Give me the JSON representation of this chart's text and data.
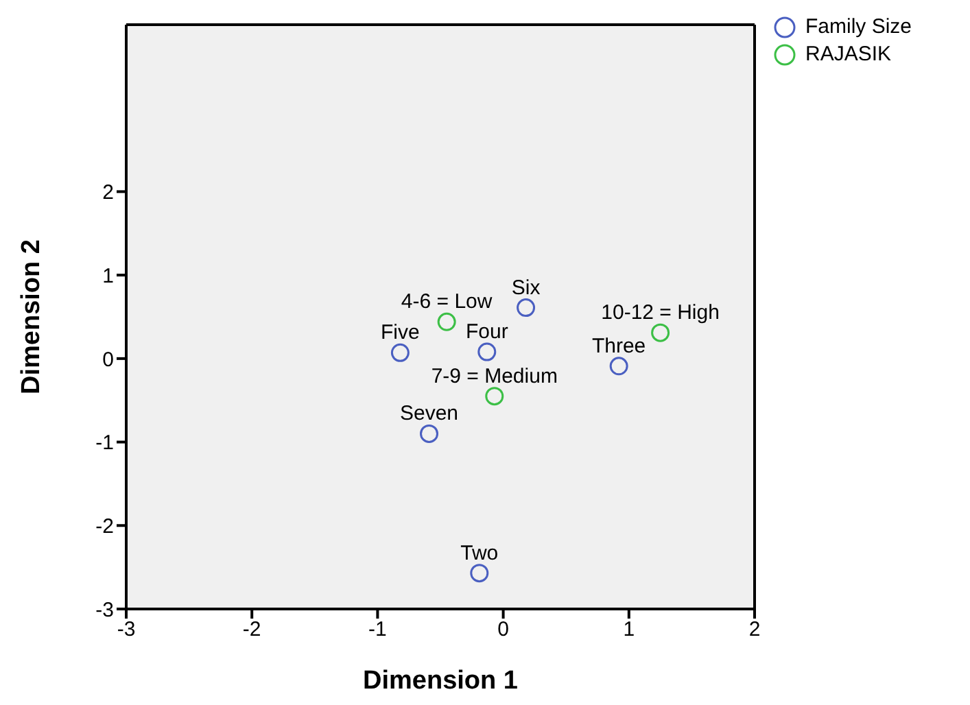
{
  "chart_data": {
    "type": "scatter",
    "xlabel": "Dimension 1",
    "ylabel": "Dimension 2",
    "xlim": [
      -3,
      2
    ],
    "xticks": [
      -3,
      -2,
      -1,
      0,
      1,
      2
    ],
    "ylim": [
      -3,
      4
    ],
    "yticks": [
      -3,
      -2,
      -1,
      0,
      1,
      2
    ],
    "grid": false,
    "legend": "top right",
    "marker": "circle",
    "series": [
      {
        "name": "Family Size",
        "color": "#4a5fc1",
        "x": [
          0.18,
          -0.82,
          -0.13,
          0.92,
          -0.59,
          -0.19
        ],
        "values": [
          0.61,
          0.07,
          0.08,
          -0.09,
          -0.9,
          -2.57
        ]
      },
      {
        "name": "RAJASIK",
        "color": "#3cbf46",
        "x": [
          -0.45,
          1.25,
          -0.07
        ],
        "values": [
          0.44,
          0.31,
          -0.45
        ]
      }
    ],
    "annotations": [
      {
        "text": "Six",
        "x": 0.18,
        "y": 0.61
      },
      {
        "text": "Five",
        "x": -0.82,
        "y": 0.07
      },
      {
        "text": "Four",
        "x": -0.13,
        "y": 0.08
      },
      {
        "text": "Three",
        "x": 0.92,
        "y": -0.09
      },
      {
        "text": "Seven",
        "x": -0.59,
        "y": -0.9
      },
      {
        "text": "Two",
        "x": -0.19,
        "y": -2.57
      },
      {
        "text": "4-6 = Low",
        "x": -0.45,
        "y": 0.44
      },
      {
        "text": "10-12 = High",
        "x": 1.25,
        "y": 0.31
      },
      {
        "text": "7-9 = Medium",
        "x": -0.07,
        "y": -0.45
      }
    ]
  }
}
